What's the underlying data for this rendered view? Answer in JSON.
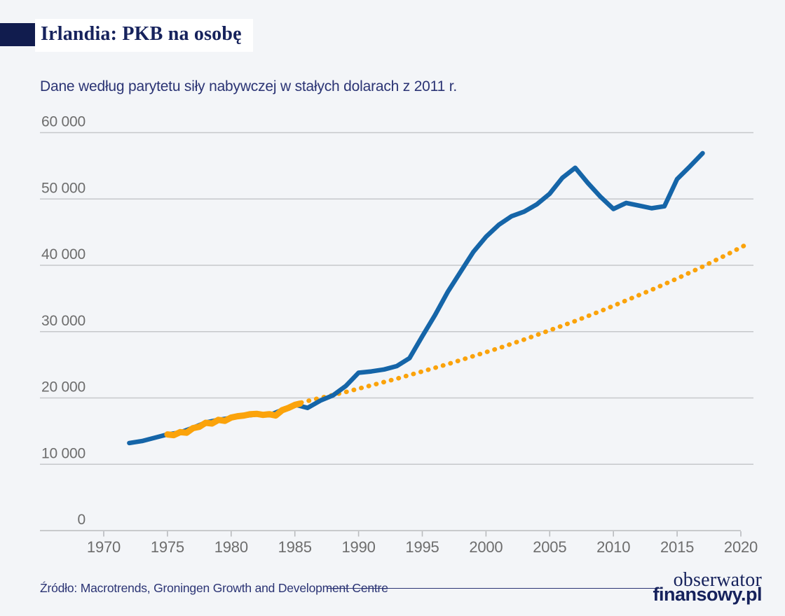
{
  "colors": {
    "background": "#f3f5f8",
    "title_block": "#111c4e",
    "navy_text": "#2b3474",
    "title_text": "#16225c",
    "actual_line": "#1565a8",
    "trend_line": "#fba30b",
    "grid_line": "#c6c8cb",
    "axis_line": "#b9bbbe",
    "tick_label": "#6d6d6d"
  },
  "branding": {
    "line1": "obserwator",
    "line2": "finansowy.pl"
  },
  "chart_data": {
    "type": "line",
    "title": "Irlandia: PKB na osobę",
    "subtitle": "Dane według parytetu siły nabywczej w stałych dolarach z 2011 r.",
    "source": "Źródło: Macrotrends, Groningen Growth and Development Centre",
    "xlabel": "",
    "ylabel": "",
    "legend": "none",
    "grid": "horizontal",
    "axis": {
      "x_min": 1970,
      "x_max": 2020,
      "y_min": 0,
      "y_max": 60000
    },
    "x_ticks": [
      {
        "value": 1970,
        "label": "1970"
      },
      {
        "value": 1975,
        "label": "1975"
      },
      {
        "value": 1980,
        "label": "1980"
      },
      {
        "value": 1985,
        "label": "1985"
      },
      {
        "value": 1990,
        "label": "1990"
      },
      {
        "value": 1995,
        "label": "1995"
      },
      {
        "value": 2000,
        "label": "2000"
      },
      {
        "value": 2005,
        "label": "2005"
      },
      {
        "value": 2010,
        "label": "2010"
      },
      {
        "value": 2015,
        "label": "2015"
      },
      {
        "value": 2020,
        "label": "2020"
      }
    ],
    "y_ticks": [
      {
        "value": 0,
        "label": "0"
      },
      {
        "value": 10000,
        "label": "10 000"
      },
      {
        "value": 20000,
        "label": "20 000"
      },
      {
        "value": 30000,
        "label": "30 000"
      },
      {
        "value": 40000,
        "label": "40 000"
      },
      {
        "value": 50000,
        "label": "50 000"
      },
      {
        "value": 60000,
        "label": "60 000"
      }
    ],
    "series": [
      {
        "id": "trend-extrapolation",
        "style": "dotted",
        "color_key": "trend_line",
        "width": 6.5,
        "points": [
          [
            1985.5,
            19300
          ],
          [
            1987,
            20000
          ],
          [
            1989,
            20900
          ],
          [
            1991,
            21900
          ],
          [
            1993,
            22900
          ],
          [
            1995,
            24000
          ],
          [
            1997,
            25100
          ],
          [
            1999,
            26300
          ],
          [
            2001,
            27500
          ],
          [
            2003,
            28800
          ],
          [
            2005,
            30200
          ],
          [
            2007,
            31600
          ],
          [
            2009,
            33100
          ],
          [
            2011,
            34700
          ],
          [
            2013,
            36300
          ],
          [
            2015,
            38000
          ],
          [
            2017,
            39800
          ],
          [
            2019,
            41700
          ],
          [
            2020.5,
            43200
          ]
        ]
      },
      {
        "id": "actual-gdp-per-capita",
        "style": "solid",
        "color_key": "actual_line",
        "width": 6.5,
        "points": [
          [
            1972,
            13200
          ],
          [
            1973,
            13500
          ],
          [
            1974,
            14000
          ],
          [
            1975,
            14500
          ],
          [
            1976,
            14800
          ],
          [
            1977,
            15500
          ],
          [
            1978,
            16300
          ],
          [
            1979,
            16700
          ],
          [
            1980,
            17000
          ],
          [
            1981,
            17300
          ],
          [
            1982,
            17500
          ],
          [
            1983,
            17400
          ],
          [
            1984,
            18200
          ],
          [
            1985,
            19000
          ],
          [
            1986,
            18500
          ],
          [
            1987,
            19600
          ],
          [
            1988,
            20400
          ],
          [
            1989,
            21800
          ],
          [
            1990,
            23800
          ],
          [
            1991,
            24000
          ],
          [
            1992,
            24300
          ],
          [
            1993,
            24800
          ],
          [
            1994,
            26000
          ],
          [
            1995,
            29300
          ],
          [
            1996,
            32500
          ],
          [
            1997,
            36000
          ],
          [
            1998,
            39000
          ],
          [
            1999,
            42000
          ],
          [
            2000,
            44300
          ],
          [
            2001,
            46100
          ],
          [
            2002,
            47400
          ],
          [
            2003,
            48100
          ],
          [
            2004,
            49200
          ],
          [
            2005,
            50800
          ],
          [
            2006,
            53200
          ],
          [
            2007,
            54700
          ],
          [
            2008,
            52400
          ],
          [
            2009,
            50300
          ],
          [
            2010,
            48500
          ],
          [
            2011,
            49400
          ],
          [
            2012,
            49000
          ],
          [
            2013,
            48600
          ],
          [
            2014,
            48900
          ],
          [
            2015,
            53000
          ],
          [
            2016,
            54900
          ],
          [
            2017,
            56900
          ]
        ]
      },
      {
        "id": "trend-fit-1975-1985",
        "style": "solid",
        "color_key": "trend_line",
        "width": 9,
        "points": [
          [
            1975,
            14500
          ],
          [
            1975.5,
            14400
          ],
          [
            1976,
            14850
          ],
          [
            1976.5,
            14750
          ],
          [
            1977,
            15450
          ],
          [
            1977.5,
            15650
          ],
          [
            1978,
            16250
          ],
          [
            1978.5,
            16150
          ],
          [
            1979,
            16700
          ],
          [
            1979.5,
            16550
          ],
          [
            1980,
            17050
          ],
          [
            1980.5,
            17250
          ],
          [
            1981,
            17350
          ],
          [
            1981.5,
            17550
          ],
          [
            1982,
            17600
          ],
          [
            1982.5,
            17450
          ],
          [
            1983,
            17550
          ],
          [
            1983.5,
            17350
          ],
          [
            1984,
            18150
          ],
          [
            1984.5,
            18500
          ],
          [
            1985,
            18950
          ],
          [
            1985.4,
            19150
          ]
        ]
      }
    ]
  }
}
